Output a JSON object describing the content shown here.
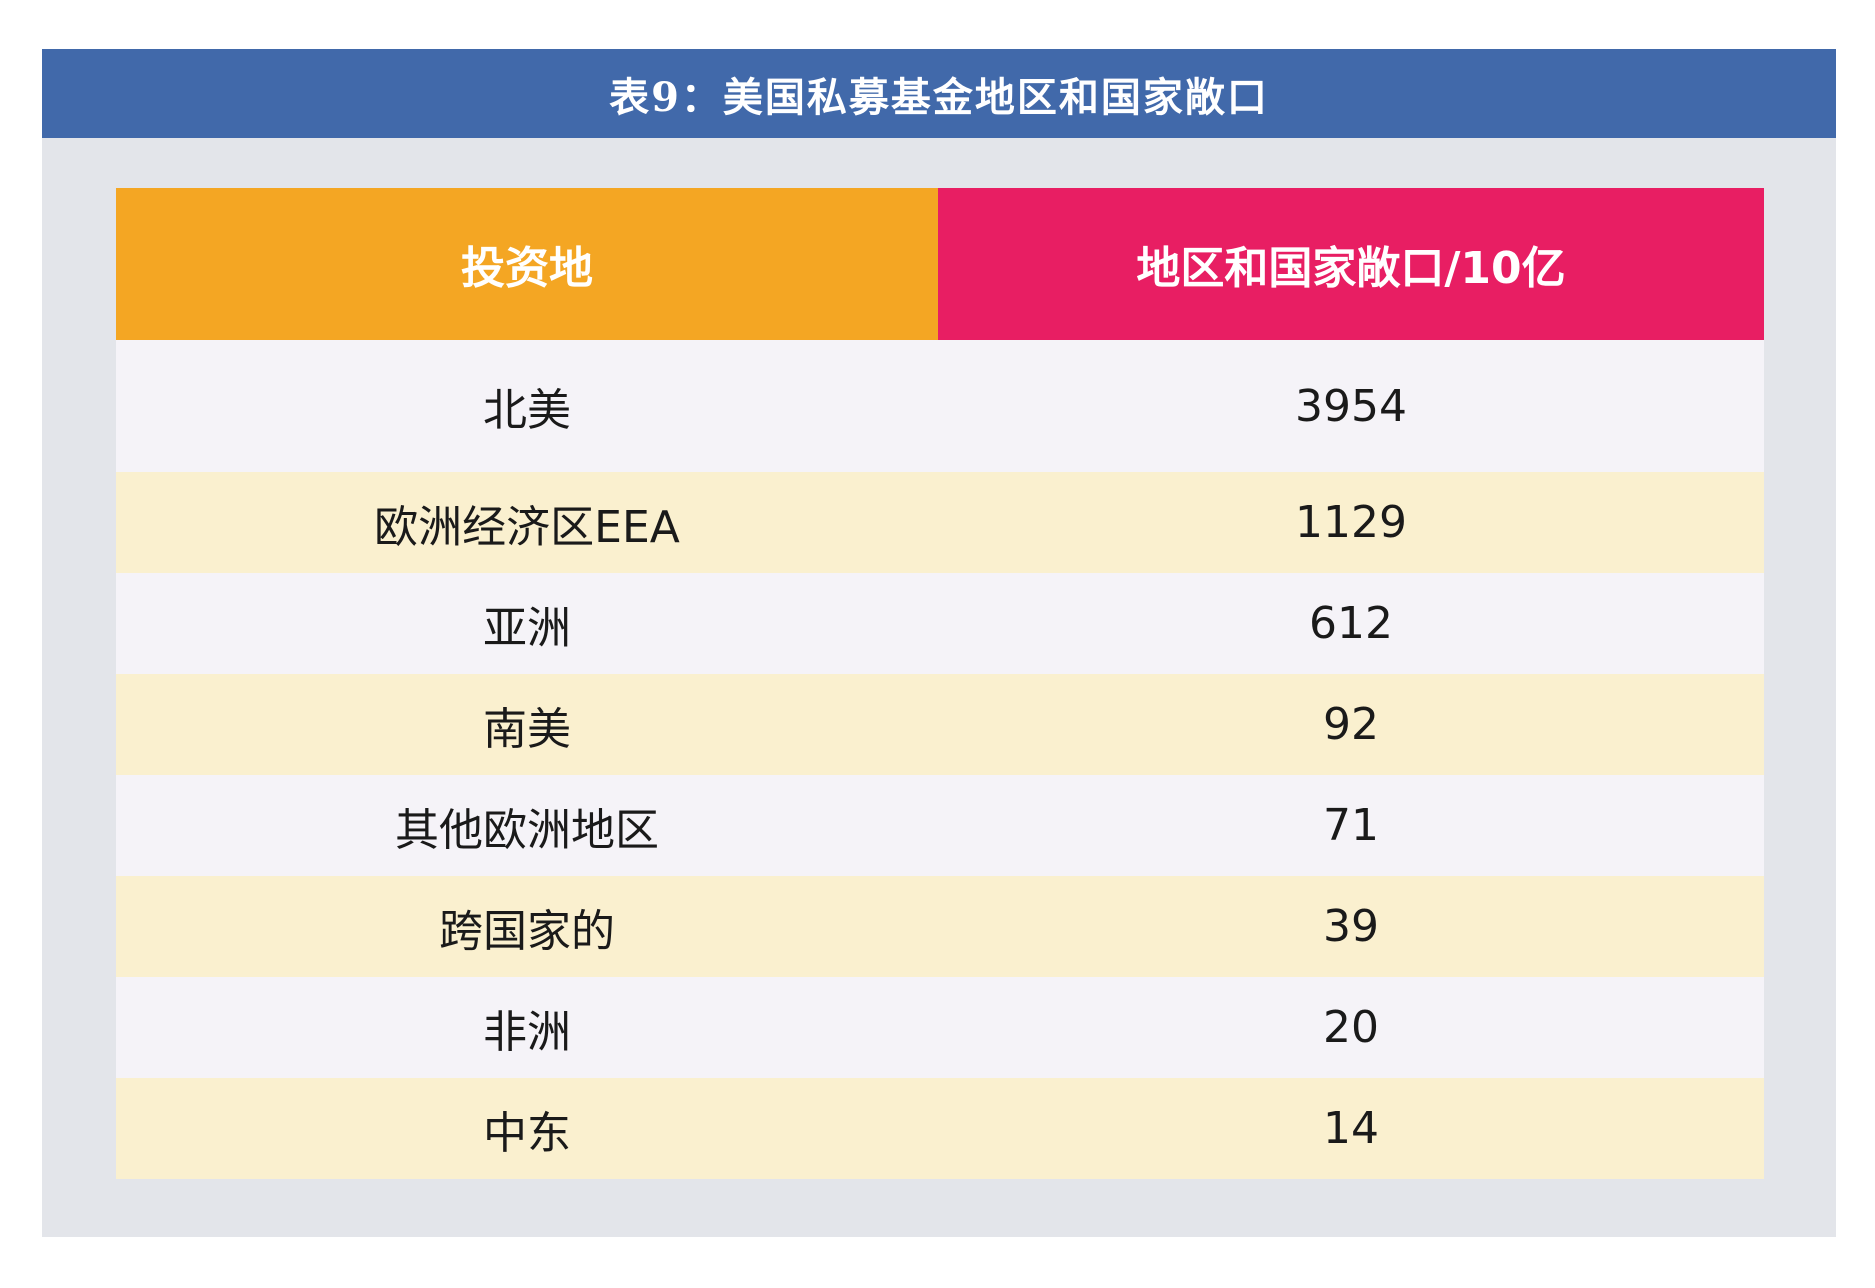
{
  "title": "表9：美国私募基金地区和国家敞口",
  "table": {
    "headers": [
      "投资地",
      "地区和国家敞口/10亿"
    ],
    "rows": [
      {
        "region": "北美",
        "value": "3954"
      },
      {
        "region": "欧洲经济区EEA",
        "value": "1129"
      },
      {
        "region": "亚洲",
        "value": "612"
      },
      {
        "region": "南美",
        "value": "92"
      },
      {
        "region": "其他欧洲地区",
        "value": "71"
      },
      {
        "region": "跨国家的",
        "value": "39"
      },
      {
        "region": "非洲",
        "value": "20"
      },
      {
        "region": "中东",
        "value": "14"
      }
    ]
  },
  "colors": {
    "title_bar": "#4169aa",
    "header_region": "#f4a623",
    "header_value": "#e81e63",
    "row_light": "#f5f3f8",
    "row_cream": "#faf0cf",
    "panel": "#e3e5ea"
  }
}
